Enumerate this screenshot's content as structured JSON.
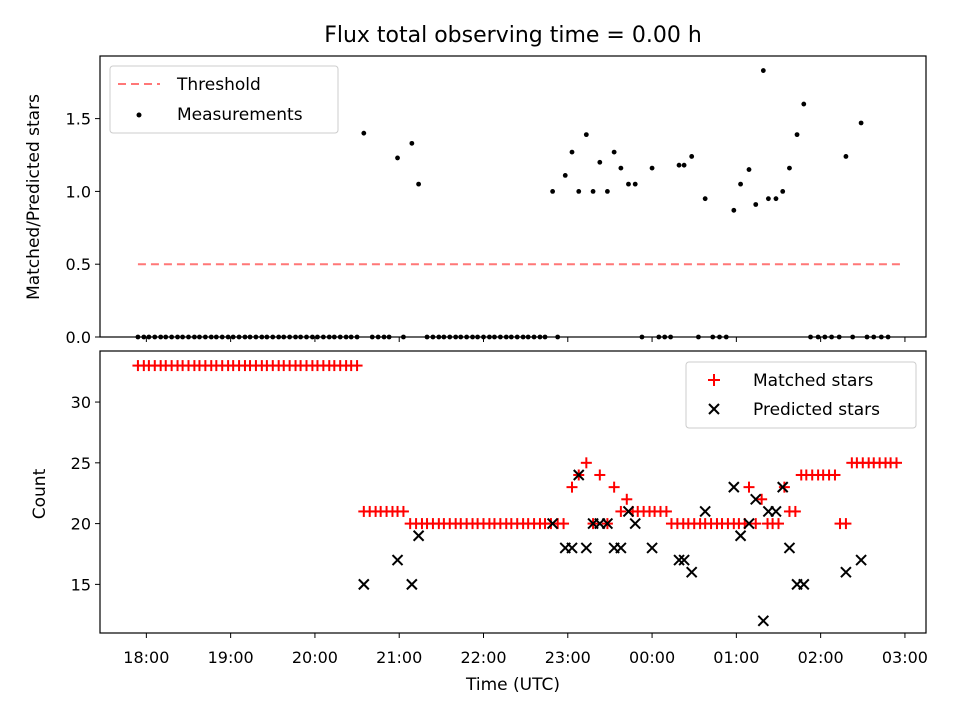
{
  "chart_data": [
    {
      "type": "scatter",
      "title": "Flux total observing time = 0.00 h",
      "xlabel": "",
      "ylabel": "Matched/Predicted stars",
      "xlim": [
        17.45,
        27.25
      ],
      "ylim": [
        0,
        1.93
      ],
      "x_tick_values": [
        18,
        19,
        20,
        21,
        22,
        23,
        24,
        25,
        26,
        27
      ],
      "y_ticks": [
        0.0,
        0.5,
        1.0,
        1.5
      ],
      "y_tick_labels": [
        "0.0",
        "0.5",
        "1.0",
        "1.5"
      ],
      "legend_position": "top-left",
      "series": [
        {
          "name": "Threshold",
          "kind": "dashed-line",
          "color": "#ff7777",
          "x": [
            17.9,
            27.0
          ],
          "y": [
            0.5,
            0.5
          ]
        },
        {
          "name": "Measurements",
          "kind": "points",
          "color": "#000000",
          "x": [
            17.9,
            17.97,
            18.03,
            18.1,
            18.17,
            18.23,
            18.3,
            18.37,
            18.43,
            18.5,
            18.57,
            18.63,
            18.7,
            18.77,
            18.83,
            18.9,
            18.97,
            19.03,
            19.1,
            19.17,
            19.23,
            19.3,
            19.37,
            19.43,
            19.5,
            19.57,
            19.63,
            19.7,
            19.77,
            19.83,
            19.9,
            19.97,
            20.03,
            20.1,
            20.17,
            20.23,
            20.3,
            20.37,
            20.43,
            20.5,
            20.58,
            20.68,
            20.75,
            20.82,
            20.88,
            20.98,
            21.05,
            21.15,
            21.23,
            21.33,
            21.4,
            21.47,
            21.53,
            21.6,
            21.67,
            21.73,
            21.8,
            21.87,
            21.93,
            22.0,
            22.07,
            22.13,
            22.2,
            22.27,
            22.33,
            22.4,
            22.47,
            22.53,
            22.6,
            22.67,
            22.73,
            22.82,
            22.88,
            22.97,
            23.05,
            23.13,
            23.22,
            23.3,
            23.38,
            23.47,
            23.55,
            23.63,
            23.72,
            23.8,
            23.88,
            24.0,
            24.08,
            24.15,
            24.22,
            24.32,
            24.38,
            24.47,
            24.55,
            24.63,
            24.72,
            24.8,
            24.88,
            24.97,
            25.05,
            25.15,
            25.23,
            25.32,
            25.38,
            25.47,
            25.55,
            25.63,
            25.72,
            25.8,
            25.88,
            25.97,
            26.05,
            26.13,
            26.22,
            26.3,
            26.38,
            26.48,
            26.55,
            26.63,
            26.72,
            26.8
          ],
          "y": [
            0,
            0,
            0,
            0,
            0,
            0,
            0,
            0,
            0,
            0,
            0,
            0,
            0,
            0,
            0,
            0,
            0,
            0,
            0,
            0,
            0,
            0,
            0,
            0,
            0,
            0,
            0,
            0,
            0,
            0,
            0,
            0,
            0,
            0,
            0,
            0,
            0,
            0,
            0,
            0,
            1.4,
            0,
            0,
            0,
            0,
            1.23,
            0,
            1.33,
            1.05,
            0,
            0,
            0,
            0,
            0,
            0,
            0,
            0,
            0,
            0,
            0,
            0,
            0,
            0,
            0,
            0,
            0,
            0,
            0,
            0,
            0,
            0,
            1.0,
            0,
            1.11,
            1.27,
            1.0,
            1.39,
            1.0,
            1.2,
            1.0,
            1.27,
            1.16,
            1.05,
            1.05,
            0,
            1.16,
            0,
            0,
            0,
            1.18,
            1.18,
            1.24,
            0,
            0.95,
            0,
            0,
            0,
            0.87,
            1.05,
            1.15,
            0.91,
            1.83,
            0.95,
            0.95,
            1.0,
            1.16,
            1.39,
            1.6,
            0,
            0,
            0,
            0,
            0,
            1.24,
            0,
            1.47,
            0,
            0,
            0,
            0
          ]
        }
      ]
    },
    {
      "type": "scatter",
      "title": "",
      "xlabel": "Time (UTC)",
      "ylabel": "Count",
      "xlim": [
        17.45,
        27.25
      ],
      "ylim": [
        11,
        34.2
      ],
      "x_tick_values": [
        18,
        19,
        20,
        21,
        22,
        23,
        24,
        25,
        26,
        27
      ],
      "x_tick_labels": [
        "18:00",
        "19:00",
        "20:00",
        "21:00",
        "22:00",
        "23:00",
        "00:00",
        "01:00",
        "02:00",
        "03:00"
      ],
      "y_ticks": [
        15,
        20,
        25,
        30
      ],
      "y_tick_labels": [
        "15",
        "20",
        "25",
        "30"
      ],
      "legend_position": "top-right",
      "series": [
        {
          "name": "Matched stars",
          "marker": "plus",
          "color": "#ff0000",
          "x": [
            17.9,
            17.97,
            18.03,
            18.1,
            18.17,
            18.23,
            18.3,
            18.37,
            18.43,
            18.5,
            18.57,
            18.63,
            18.7,
            18.77,
            18.83,
            18.9,
            18.97,
            19.03,
            19.1,
            19.17,
            19.23,
            19.3,
            19.37,
            19.43,
            19.5,
            19.57,
            19.63,
            19.7,
            19.77,
            19.83,
            19.9,
            19.97,
            20.03,
            20.1,
            20.17,
            20.23,
            20.3,
            20.37,
            20.43,
            20.5,
            20.58,
            20.65,
            20.72,
            20.78,
            20.85,
            20.92,
            20.98,
            21.05,
            21.13,
            21.2,
            21.27,
            21.33,
            21.4,
            21.47,
            21.53,
            21.6,
            21.67,
            21.73,
            21.8,
            21.87,
            21.93,
            22.0,
            22.07,
            22.13,
            22.2,
            22.27,
            22.33,
            22.4,
            22.47,
            22.53,
            22.6,
            22.67,
            22.73,
            22.8,
            22.88,
            22.95,
            23.05,
            23.13,
            23.22,
            23.3,
            23.38,
            23.47,
            23.55,
            23.63,
            23.7,
            23.77,
            23.83,
            23.9,
            23.97,
            24.03,
            24.1,
            24.17,
            24.23,
            24.3,
            24.37,
            24.43,
            24.5,
            24.57,
            24.63,
            24.7,
            24.77,
            24.83,
            24.9,
            24.97,
            25.03,
            25.1,
            25.15,
            25.23,
            25.3,
            25.37,
            25.43,
            25.5,
            25.57,
            25.63,
            25.7,
            25.77,
            25.83,
            25.9,
            25.97,
            26.03,
            26.1,
            26.17,
            26.23,
            26.3,
            26.37,
            26.43,
            26.5,
            26.57,
            26.63,
            26.7,
            26.77,
            26.83,
            26.9
          ],
          "y": [
            33,
            33,
            33,
            33,
            33,
            33,
            33,
            33,
            33,
            33,
            33,
            33,
            33,
            33,
            33,
            33,
            33,
            33,
            33,
            33,
            33,
            33,
            33,
            33,
            33,
            33,
            33,
            33,
            33,
            33,
            33,
            33,
            33,
            33,
            33,
            33,
            33,
            33,
            33,
            33,
            21,
            21,
            21,
            21,
            21,
            21,
            21,
            21,
            20,
            20,
            20,
            20,
            20,
            20,
            20,
            20,
            20,
            20,
            20,
            20,
            20,
            20,
            20,
            20,
            20,
            20,
            20,
            20,
            20,
            20,
            20,
            20,
            20,
            20,
            20,
            20,
            23,
            24,
            25,
            20,
            24,
            20,
            23,
            21,
            22,
            21,
            21,
            21,
            21,
            21,
            21,
            21,
            20,
            20,
            20,
            20,
            20,
            20,
            20,
            20,
            20,
            20,
            20,
            20,
            20,
            20,
            23,
            20,
            22,
            20,
            20,
            20,
            23,
            21,
            21,
            24,
            24,
            24,
            24,
            24,
            24,
            24,
            20,
            20,
            25,
            25,
            25,
            25,
            25,
            25,
            25,
            25,
            25
          ],
          "note_skip": "values list continues to end of x list"
        },
        {
          "name": "Predicted stars",
          "marker": "x",
          "color": "#000000",
          "x": [
            20.58,
            20.98,
            21.15,
            21.23,
            22.82,
            22.97,
            23.05,
            23.13,
            23.22,
            23.3,
            23.38,
            23.47,
            23.55,
            23.63,
            23.72,
            23.8,
            24.0,
            24.32,
            24.38,
            24.47,
            24.63,
            24.97,
            25.05,
            25.15,
            25.23,
            25.32,
            25.38,
            25.47,
            25.55,
            25.63,
            25.72,
            25.8
          ],
          "y": [
            15,
            17,
            15,
            19,
            20,
            18,
            18,
            24,
            18,
            20,
            20,
            20,
            18,
            18,
            21,
            20,
            18,
            17,
            17,
            16,
            21,
            23,
            19,
            20,
            22,
            12,
            21,
            21,
            23,
            18,
            15,
            15
          ],
          "extra_points": [
            [
              26.3,
              16
            ],
            [
              26.48,
              17
            ]
          ]
        }
      ]
    }
  ]
}
